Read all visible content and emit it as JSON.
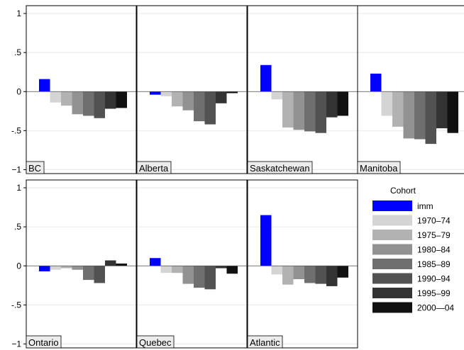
{
  "chart_data": {
    "type": "bar",
    "ylim": [
      -1.05,
      1.1
    ],
    "yticks": [
      {
        "value": 1,
        "label": "1"
      },
      {
        "value": 0.5,
        "label": ".5"
      },
      {
        "value": 0,
        "label": "0"
      },
      {
        "value": -0.5,
        "label": "-.5"
      },
      {
        "value": -1,
        "label": "−1"
      }
    ],
    "grid": true,
    "legend": {
      "title": "Cohort",
      "position": "bottom-right",
      "items": [
        {
          "name": "imm",
          "color": "#0000ff"
        },
        {
          "name": "1970–74",
          "color": "#d4d4d4"
        },
        {
          "name": "1975–79",
          "color": "#b2b2b2"
        },
        {
          "name": "1980–84",
          "color": "#929292"
        },
        {
          "name": "1985–89",
          "color": "#6f6f6f"
        },
        {
          "name": "1990–94",
          "color": "#525252"
        },
        {
          "name": "1995–99",
          "color": "#333333"
        },
        {
          "name": "2000—04",
          "color": "#111111"
        }
      ]
    },
    "panels": [
      {
        "label": "BC",
        "values": [
          0.16,
          -0.14,
          -0.18,
          -0.29,
          -0.31,
          -0.34,
          -0.22,
          -0.21
        ]
      },
      {
        "label": "Alberta",
        "values": [
          -0.04,
          -0.06,
          -0.19,
          -0.24,
          -0.38,
          -0.42,
          -0.15,
          -0.02
        ]
      },
      {
        "label": "Saskatchewan",
        "values": [
          0.34,
          -0.1,
          -0.46,
          -0.49,
          -0.51,
          -0.53,
          -0.33,
          -0.31
        ]
      },
      {
        "label": "Manitoba",
        "values": [
          0.23,
          -0.31,
          -0.45,
          -0.6,
          -0.61,
          -0.67,
          -0.47,
          -0.53
        ]
      },
      {
        "label": "Ontario",
        "values": [
          -0.07,
          -0.05,
          -0.03,
          -0.05,
          -0.18,
          -0.22,
          0.07,
          0.03
        ]
      },
      {
        "label": "Quebec",
        "values": [
          0.1,
          -0.09,
          -0.09,
          -0.23,
          -0.28,
          -0.3,
          -0.03,
          -0.1
        ]
      },
      {
        "label": "Atlantic",
        "values": [
          0.65,
          -0.11,
          -0.24,
          -0.17,
          -0.22,
          -0.23,
          -0.26,
          -0.15
        ]
      }
    ]
  }
}
